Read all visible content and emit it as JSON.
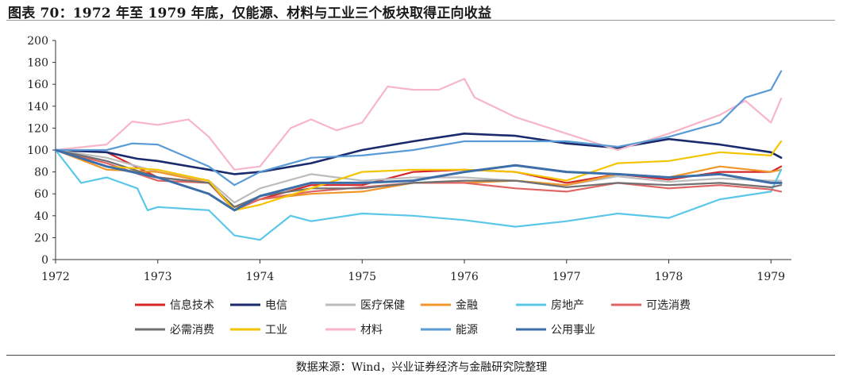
{
  "header": {
    "title": "图表 70：1972 年至 1979 年底，仅能源、材料与工业三个板块取得正向收益"
  },
  "footer": {
    "source": "数据来源：Wind，兴业证券经济与金融研究院整理"
  },
  "chart_data": {
    "type": "line",
    "title": "",
    "xlabel": "",
    "ylabel": "",
    "ylim": [
      0,
      200
    ],
    "yticks": [
      0,
      20,
      40,
      60,
      80,
      100,
      120,
      140,
      160,
      180,
      200
    ],
    "xlim": [
      1972,
      1979.2
    ],
    "xticks": [
      1972,
      1973,
      1974,
      1975,
      1976,
      1977,
      1978,
      1979
    ],
    "grid": false,
    "legend_position": "bottom",
    "series": [
      {
        "name": "信息技术",
        "color": "#d62728",
        "width": 2.2,
        "x": [
          1972,
          1972.5,
          1973,
          1973.5,
          1973.75,
          1974,
          1974.5,
          1975,
          1975.5,
          1976,
          1976.5,
          1977,
          1977.5,
          1978,
          1978.5,
          1979,
          1979.1
        ],
        "y": [
          100,
          98,
          75,
          70,
          48,
          55,
          68,
          68,
          80,
          82,
          80,
          70,
          78,
          73,
          80,
          80,
          85
        ]
      },
      {
        "name": "电信",
        "color": "#1a2a6c",
        "width": 2.6,
        "x": [
          1972,
          1972.5,
          1972.8,
          1973,
          1973.5,
          1973.75,
          1974,
          1974.5,
          1975,
          1975.5,
          1976,
          1976.5,
          1977,
          1977.5,
          1978,
          1978.5,
          1979,
          1979.1
        ],
        "y": [
          100,
          98,
          92,
          90,
          82,
          78,
          80,
          88,
          100,
          108,
          115,
          113,
          106,
          102,
          110,
          105,
          98,
          93
        ]
      },
      {
        "name": "医疗保健",
        "color": "#bcbcbc",
        "width": 2.2,
        "x": [
          1972,
          1972.5,
          1973,
          1973.5,
          1973.75,
          1974,
          1974.5,
          1975,
          1975.5,
          1976,
          1976.5,
          1977,
          1977.5,
          1978,
          1978.5,
          1979,
          1979.1
        ],
        "y": [
          100,
          93,
          80,
          72,
          52,
          65,
          78,
          72,
          75,
          75,
          72,
          68,
          76,
          71,
          74,
          72,
          72
        ]
      },
      {
        "name": "金融",
        "color": "#f0962a",
        "width": 2.2,
        "x": [
          1972,
          1972.5,
          1973,
          1973.5,
          1973.75,
          1974,
          1974.5,
          1975,
          1975.5,
          1976,
          1976.5,
          1977,
          1977.5,
          1978,
          1978.5,
          1979,
          1979.1
        ],
        "y": [
          100,
          82,
          80,
          70,
          48,
          55,
          60,
          62,
          70,
          70,
          72,
          68,
          78,
          75,
          85,
          80,
          82
        ]
      },
      {
        "name": "房地产",
        "color": "#5bc7e8",
        "width": 2.2,
        "x": [
          1972,
          1972.25,
          1972.5,
          1972.8,
          1972.9,
          1973,
          1973.5,
          1973.75,
          1974,
          1974.3,
          1974.5,
          1975,
          1975.5,
          1976,
          1976.5,
          1977,
          1977.5,
          1978,
          1978.5,
          1979,
          1979.1
        ],
        "y": [
          100,
          70,
          75,
          65,
          45,
          48,
          45,
          22,
          18,
          40,
          35,
          42,
          40,
          36,
          30,
          35,
          42,
          38,
          55,
          62,
          82
        ]
      },
      {
        "name": "可选消费",
        "color": "#e06666",
        "width": 2.2,
        "x": [
          1972,
          1972.5,
          1973,
          1973.5,
          1973.75,
          1974,
          1974.5,
          1975,
          1975.5,
          1976,
          1976.5,
          1977,
          1977.5,
          1978,
          1978.5,
          1979,
          1979.1
        ],
        "y": [
          100,
          88,
          72,
          70,
          45,
          55,
          62,
          66,
          70,
          70,
          65,
          62,
          70,
          65,
          68,
          64,
          62
        ]
      },
      {
        "name": "必需消费",
        "color": "#707070",
        "width": 2.2,
        "x": [
          1972,
          1972.5,
          1973,
          1973.5,
          1973.75,
          1974,
          1974.5,
          1975,
          1975.5,
          1976,
          1976.5,
          1977,
          1977.5,
          1978,
          1978.5,
          1979,
          1979.1
        ],
        "y": [
          100,
          90,
          75,
          70,
          48,
          58,
          65,
          65,
          70,
          72,
          72,
          66,
          70,
          68,
          70,
          66,
          68
        ]
      },
      {
        "name": "工业",
        "color": "#f5c400",
        "width": 2.2,
        "x": [
          1972,
          1972.5,
          1973,
          1973.5,
          1973.75,
          1974,
          1974.5,
          1975,
          1975.5,
          1976,
          1976.5,
          1977,
          1977.5,
          1978,
          1978.5,
          1979,
          1979.1
        ],
        "y": [
          100,
          85,
          82,
          72,
          45,
          50,
          65,
          80,
          82,
          82,
          80,
          72,
          88,
          90,
          98,
          95,
          108
        ]
      },
      {
        "name": "材料",
        "color": "#f7b6c8",
        "width": 2.2,
        "x": [
          1972,
          1972.5,
          1972.75,
          1973,
          1973.3,
          1973.5,
          1973.75,
          1974,
          1974.3,
          1974.5,
          1974.75,
          1975,
          1975.25,
          1975.5,
          1975.75,
          1976,
          1976.1,
          1976.5,
          1977,
          1977.5,
          1978,
          1978.5,
          1978.75,
          1979,
          1979.1
        ],
        "y": [
          100,
          105,
          126,
          123,
          128,
          112,
          82,
          85,
          120,
          128,
          118,
          125,
          158,
          155,
          155,
          165,
          148,
          130,
          115,
          100,
          115,
          132,
          145,
          125,
          147
        ]
      },
      {
        "name": "能源",
        "color": "#5b9bd5",
        "width": 2.2,
        "x": [
          1972,
          1972.5,
          1972.75,
          1973,
          1973.5,
          1973.75,
          1974,
          1974.5,
          1975,
          1975.5,
          1976,
          1976.5,
          1977,
          1977.5,
          1978,
          1978.5,
          1978.75,
          1979,
          1979.1
        ],
        "y": [
          100,
          100,
          106,
          105,
          85,
          68,
          80,
          93,
          95,
          100,
          108,
          108,
          108,
          103,
          112,
          125,
          148,
          155,
          172
        ]
      },
      {
        "name": "公用事业",
        "color": "#3d6ea8",
        "width": 3.0,
        "x": [
          1972,
          1972.5,
          1973,
          1973.5,
          1973.75,
          1974,
          1974.5,
          1975,
          1975.5,
          1976,
          1976.5,
          1977,
          1977.5,
          1978,
          1978.5,
          1979,
          1979.1
        ],
        "y": [
          100,
          85,
          75,
          60,
          45,
          58,
          70,
          70,
          72,
          80,
          86,
          80,
          78,
          75,
          78,
          70,
          70
        ]
      }
    ]
  }
}
